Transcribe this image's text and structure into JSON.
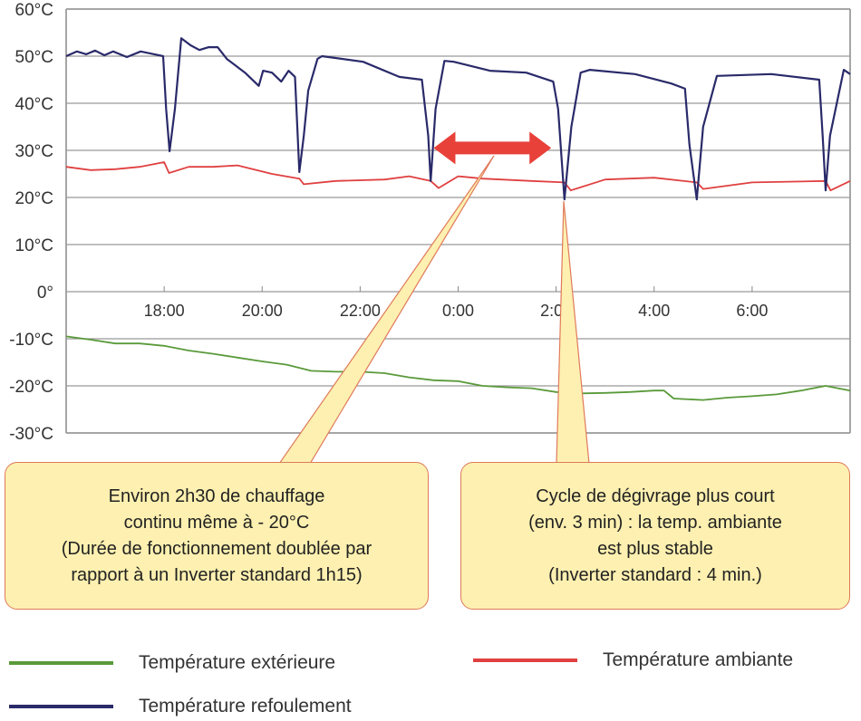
{
  "chart_data": {
    "type": "line",
    "title": "",
    "xlabel": "",
    "ylabel": "",
    "xlim": [
      16,
      32
    ],
    "ylim": [
      -30,
      60
    ],
    "grid": true,
    "x_ticks": [
      18,
      20,
      22,
      24,
      26,
      28,
      30
    ],
    "x_tick_labels": [
      "18:00",
      "20:00",
      "22:00",
      "0:00",
      "2:00",
      "4:00",
      "6:00"
    ],
    "y_ticks": [
      60,
      50,
      40,
      30,
      20,
      10,
      0,
      -10,
      -20,
      -30
    ],
    "y_tick_labels": [
      "60°C",
      "50°C",
      "40°C",
      "30°C",
      "20°C",
      "10°C",
      "0°",
      "-10°C",
      "-20°C",
      "-30°C"
    ],
    "legend_placement": "bottom",
    "series": [
      {
        "name": "Température extérieure",
        "color": "#5a9a3a",
        "points": [
          [
            16,
            -9.5
          ],
          [
            16.5,
            -10.2
          ],
          [
            17,
            -11
          ],
          [
            17.5,
            -11
          ],
          [
            18,
            -11.5
          ],
          [
            18.5,
            -12.5
          ],
          [
            19,
            -13.2
          ],
          [
            19.5,
            -14
          ],
          [
            20,
            -14.8
          ],
          [
            20.5,
            -15.5
          ],
          [
            21,
            -16.8
          ],
          [
            21.5,
            -17
          ],
          [
            22,
            -17
          ],
          [
            22.5,
            -17.3
          ],
          [
            23,
            -18.2
          ],
          [
            23.5,
            -18.8
          ],
          [
            24,
            -19
          ],
          [
            24.5,
            -20
          ],
          [
            25,
            -20.3
          ],
          [
            25.5,
            -20.5
          ],
          [
            26,
            -21.3
          ],
          [
            26.5,
            -21.6
          ],
          [
            27,
            -21.5
          ],
          [
            27.5,
            -21.3
          ],
          [
            28,
            -21
          ],
          [
            28.2,
            -21
          ],
          [
            28.4,
            -22.7
          ],
          [
            29,
            -23
          ],
          [
            29.5,
            -22.5
          ],
          [
            30,
            -22.2
          ],
          [
            30.5,
            -21.8
          ],
          [
            31,
            -21
          ],
          [
            31.5,
            -20
          ],
          [
            32,
            -21
          ]
        ]
      },
      {
        "name": "Température ambiante",
        "color": "#e04040",
        "points": [
          [
            16,
            26.5
          ],
          [
            16.5,
            25.8
          ],
          [
            17,
            26
          ],
          [
            17.5,
            26.5
          ],
          [
            18,
            27.5
          ],
          [
            18.1,
            25.2
          ],
          [
            18.5,
            26.5
          ],
          [
            19,
            26.5
          ],
          [
            19.5,
            26.8
          ],
          [
            20.2,
            25
          ],
          [
            20.76,
            24
          ],
          [
            20.85,
            22.8
          ],
          [
            21.5,
            23.5
          ],
          [
            22.5,
            23.8
          ],
          [
            23,
            24.5
          ],
          [
            23.44,
            23.5
          ],
          [
            23.6,
            22
          ],
          [
            24,
            24.5
          ],
          [
            24.5,
            24
          ],
          [
            25.5,
            23.5
          ],
          [
            26.17,
            23.2
          ],
          [
            26.3,
            21.5
          ],
          [
            27,
            23.8
          ],
          [
            28,
            24.2
          ],
          [
            28.87,
            23.2
          ],
          [
            29,
            21.8
          ],
          [
            30,
            23.2
          ],
          [
            31.5,
            23.5
          ],
          [
            31.6,
            21.5
          ],
          [
            32,
            23.5
          ]
        ]
      },
      {
        "name": "Température refoulement",
        "color": "#2a2a6a",
        "points": [
          [
            16,
            50
          ],
          [
            16.22,
            51
          ],
          [
            16.41,
            50.4
          ],
          [
            16.59,
            51.2
          ],
          [
            16.78,
            50.2
          ],
          [
            16.96,
            51
          ],
          [
            17.24,
            49.8
          ],
          [
            17.52,
            51
          ],
          [
            17.8,
            50.4
          ],
          [
            17.98,
            50
          ],
          [
            18.04,
            38.8
          ],
          [
            18.11,
            29.8
          ],
          [
            18.22,
            38.8
          ],
          [
            18.35,
            53.8
          ],
          [
            18.54,
            52.3
          ],
          [
            18.72,
            51.3
          ],
          [
            18.91,
            51.9
          ],
          [
            19.09,
            51.9
          ],
          [
            19.28,
            49.4
          ],
          [
            19.65,
            46.5
          ],
          [
            19.93,
            43.7
          ],
          [
            20.02,
            46.9
          ],
          [
            20.2,
            46.5
          ],
          [
            20.39,
            44.6
          ],
          [
            20.54,
            46.9
          ],
          [
            20.67,
            45.6
          ],
          [
            20.76,
            25.4
          ],
          [
            20.85,
            33.1
          ],
          [
            20.94,
            42.7
          ],
          [
            21.13,
            49.4
          ],
          [
            21.22,
            50
          ],
          [
            22.06,
            48.8
          ],
          [
            22.8,
            45.6
          ],
          [
            23.26,
            45
          ],
          [
            23.39,
            33.1
          ],
          [
            23.44,
            23.5
          ],
          [
            23.54,
            38.8
          ],
          [
            23.72,
            49
          ],
          [
            23.91,
            48.8
          ],
          [
            24.65,
            46.9
          ],
          [
            25.39,
            46.5
          ],
          [
            25.94,
            44.6
          ],
          [
            26.04,
            38.8
          ],
          [
            26.17,
            19.6
          ],
          [
            26.31,
            35
          ],
          [
            26.5,
            46.5
          ],
          [
            26.69,
            47.1
          ],
          [
            27.61,
            46.2
          ],
          [
            28.35,
            44.2
          ],
          [
            28.63,
            43.1
          ],
          [
            28.72,
            31.2
          ],
          [
            28.87,
            19.6
          ],
          [
            29,
            35
          ],
          [
            29.28,
            45.8
          ],
          [
            30.39,
            46.2
          ],
          [
            31.37,
            45
          ],
          [
            31.44,
            33.1
          ],
          [
            31.5,
            21.5
          ],
          [
            31.59,
            33.1
          ],
          [
            31.87,
            47.1
          ],
          [
            32,
            46.2
          ]
        ]
      }
    ],
    "annotations": [
      {
        "lines": [
          "Environ 2h30 de chauffage",
          "continu même à - 20°C",
          "(Durée de fonctionnement doublée par",
          "rapport à un Inverter standard 1h15)"
        ]
      },
      {
        "lines": [
          "Cycle de dégivrage plus court",
          "(env. 3 min) : la temp. ambiante",
          "est plus stable",
          "(Inverter standard : 4 min.)"
        ]
      }
    ],
    "arrow_span": {
      "from": 23.5,
      "to": 25.9,
      "at": 30.5,
      "color": "#e8413a"
    }
  }
}
